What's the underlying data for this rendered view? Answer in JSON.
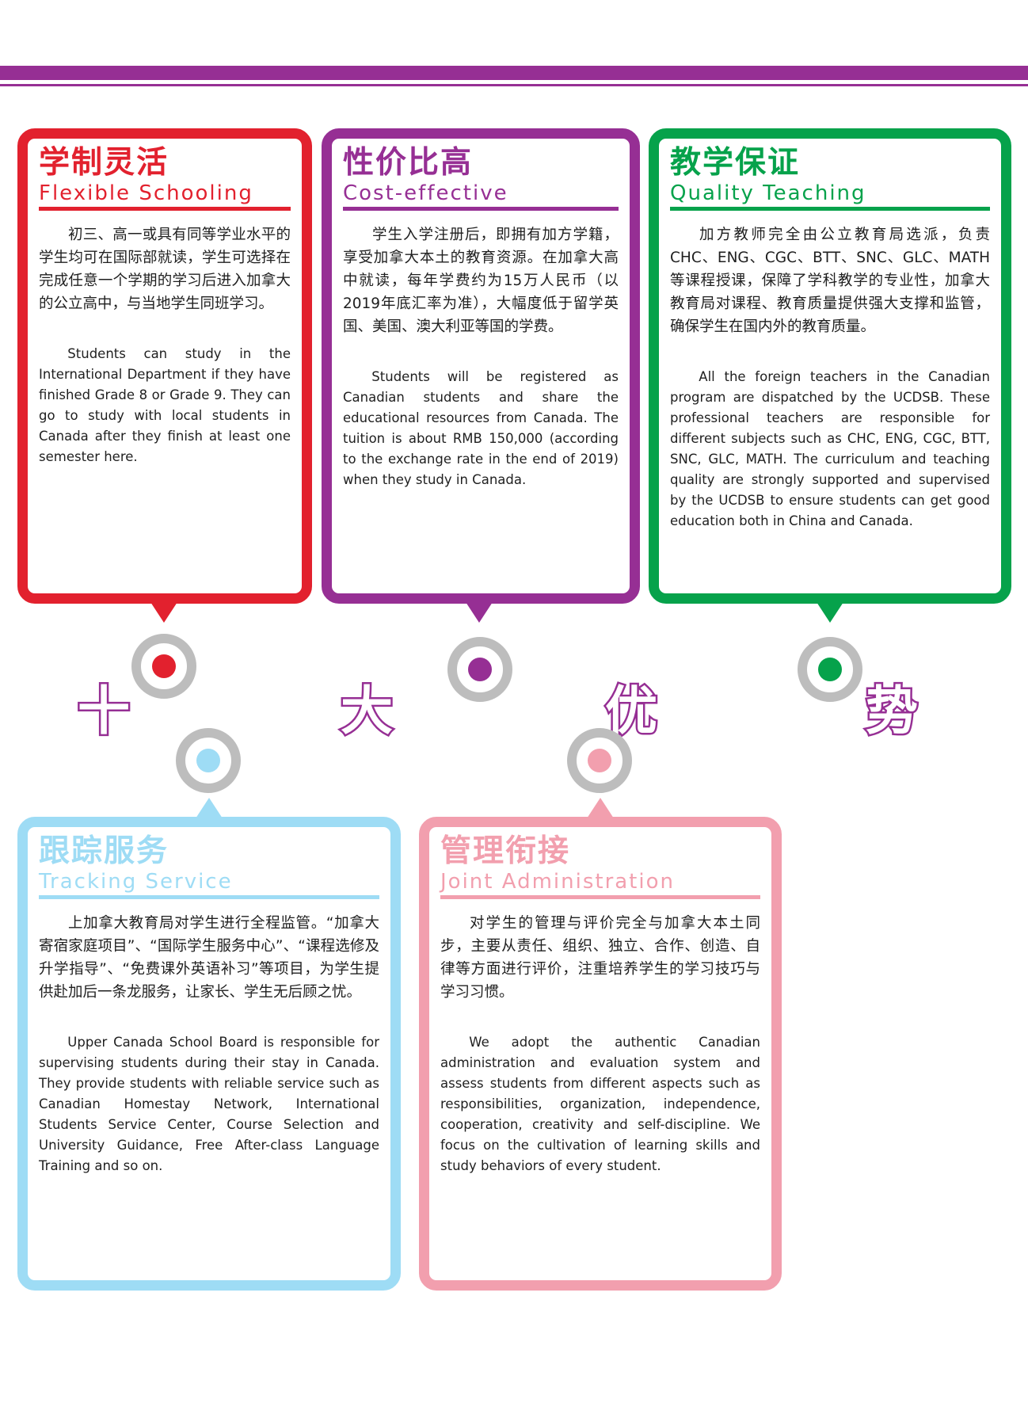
{
  "colors": {
    "purple": "#962f94",
    "red": "#e2212e",
    "green": "#06a24b",
    "light_blue": "#9edcf5",
    "pink": "#f29fae",
    "ring_gray": "#bdbdbd"
  },
  "banner": [
    "十",
    "大",
    "优",
    "势"
  ],
  "cards": [
    {
      "title_zh": "学制灵活",
      "title_en": "Flexible Schooling",
      "body_zh": "初三、高一或具有同等学业水平的学生均可在国际部就读，学生可选择在完成任意一个学期的学习后进入加拿大的公立高中，与当地学生同班学习。",
      "body_en": "Students can study in the International Department if they have finished Grade 8 or Grade 9. They can go to study with local students in Canada after they finish at least one semester here."
    },
    {
      "title_zh": "性价比高",
      "title_en": "Cost-effective",
      "body_zh": "学生入学注册后，即拥有加方学籍，享受加拿大本土的教育资源。在加拿大高中就读，每年学费约为15万人民币（以2019年底汇率为准），大幅度低于留学英国、美国、澳大利亚等国的学费。",
      "body_en": "Students will be registered as Canadian students and share the educational resources from Canada. The tuition is about RMB 150,000 (according to the exchange rate in the end of 2019) when they study in Canada."
    },
    {
      "title_zh": "教学保证",
      "title_en": "Quality Teaching",
      "body_zh": "加方教师完全由公立教育局选派，负责CHC、ENG、CGC、BTT、SNC、GLC、MATH等课程授课，保障了学科教学的专业性，加拿大教育局对课程、教育质量提供强大支撑和监管，确保学生在国内外的教育质量。",
      "body_en": "All the foreign teachers in the Canadian program are dispatched by the UCDSB. These professional teachers are responsible for different subjects such as CHC, ENG, CGC, BTT, SNC, GLC, MATH. The curriculum and teaching quality are strongly supported and supervised by the UCDSB to ensure students can get good education both in China and Canada."
    },
    {
      "title_zh": "跟踪服务",
      "title_en": "Tracking Service",
      "body_zh": "上加拿大教育局对学生进行全程监管。“加拿大寄宿家庭项目”、“国际学生服务中心”、“课程选修及升学指导”、“免费课外英语补习”等项目，为学生提供赴加后一条龙服务，让家长、学生无后顾之忧。",
      "body_en": "Upper Canada School Board is responsible for supervising students during their stay in Canada. They provide students with reliable service such as Canadian Homestay Network, International Students Service Center, Course Selection and University Guidance, Free After-class Language Training and so on."
    },
    {
      "title_zh": "管理衔接",
      "title_en": "Joint Administration",
      "body_zh": "对学生的管理与评价完全与加拿大本土同步，主要从责任、组织、独立、合作、创造、自律等方面进行评价，注重培养学生的学习技巧与学习习惯。",
      "body_en": "We adopt the authentic Canadian administration and evaluation system and assess students from different aspects such as responsibilities, organization, independence, cooperation, creativity and self-discipline. We focus on the cultivation of learning skills and study behaviors of every student."
    }
  ]
}
